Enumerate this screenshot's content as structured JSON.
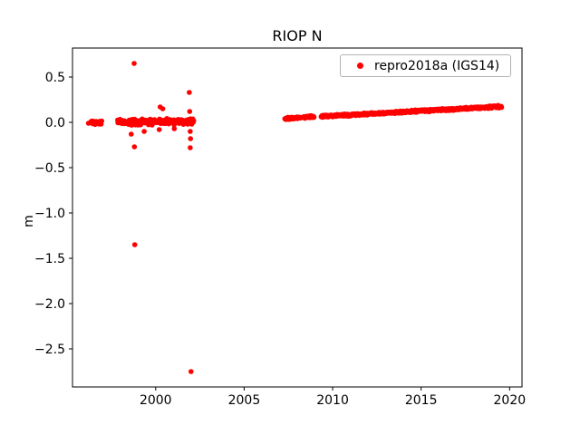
{
  "figure": {
    "background": "#ffffff"
  },
  "chart_data": {
    "type": "scatter",
    "title": "RIOP N",
    "xlabel": "",
    "ylabel": "m",
    "grid": false,
    "legend": {
      "label": "repro2018a (IGS14)",
      "position": "upper right"
    },
    "xlim": [
      1995.3,
      2020.7
    ],
    "ylim": [
      -2.92,
      0.82
    ],
    "xticks": {
      "values": [
        2000,
        2005,
        2010,
        2015,
        2020
      ],
      "labels": [
        "2000",
        "2005",
        "2010",
        "2015",
        "2020"
      ]
    },
    "yticks": {
      "values": [
        0.5,
        0.0,
        -0.5,
        -1.0,
        -1.5,
        -2.0,
        -2.5
      ],
      "labels": [
        "0.5",
        "0.0",
        "−0.5",
        "−1.0",
        "−1.5",
        "−2.0",
        "−2.5"
      ]
    },
    "series": [
      {
        "name": "repro2018a (IGS14)",
        "color": "#ff0000",
        "marker": "circle",
        "marker_radius_px": 2.8,
        "dense_segments": [
          {
            "x_start": 1996.35,
            "x_end": 1996.95,
            "count": 22,
            "y_start": 0.0,
            "y_end": 0.0,
            "jitter": 0.02
          },
          {
            "x_start": 1997.85,
            "x_end": 2002.15,
            "count": 230,
            "y_start": 0.0,
            "y_end": 0.01,
            "jitter": 0.025
          },
          {
            "x_start": 2007.3,
            "x_end": 2008.2,
            "count": 55,
            "y_start": 0.04,
            "y_end": 0.052,
            "jitter": 0.01
          },
          {
            "x_start": 2008.35,
            "x_end": 2008.95,
            "count": 35,
            "y_start": 0.053,
            "y_end": 0.062,
            "jitter": 0.01
          },
          {
            "x_start": 2009.35,
            "x_end": 2019.55,
            "count": 560,
            "y_start": 0.065,
            "y_end": 0.175,
            "jitter": 0.01
          }
        ],
        "outliers": [
          [
            1996.2,
            -0.01
          ],
          [
            1998.62,
            -0.13
          ],
          [
            1998.78,
            0.65
          ],
          [
            1998.8,
            -0.27
          ],
          [
            1998.82,
            -1.35
          ],
          [
            1999.35,
            -0.1
          ],
          [
            2000.2,
            -0.08
          ],
          [
            2000.25,
            0.17
          ],
          [
            2000.4,
            0.15
          ],
          [
            2001.05,
            -0.07
          ],
          [
            2001.9,
            0.33
          ],
          [
            2001.92,
            0.12
          ],
          [
            2001.95,
            -0.1
          ],
          [
            2001.95,
            -0.28
          ],
          [
            2001.97,
            -0.18
          ],
          [
            2002.0,
            -2.75
          ]
        ]
      }
    ]
  }
}
